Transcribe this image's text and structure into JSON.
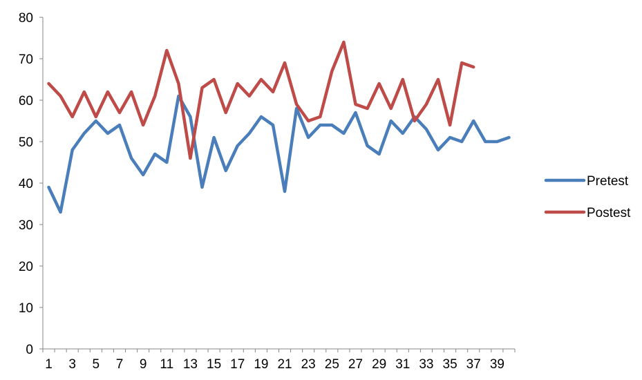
{
  "chart_data": {
    "type": "line",
    "title": "",
    "xlabel": "",
    "ylabel": "",
    "x": [
      1,
      2,
      3,
      4,
      5,
      6,
      7,
      8,
      9,
      10,
      11,
      12,
      13,
      14,
      15,
      16,
      17,
      18,
      19,
      20,
      21,
      22,
      23,
      24,
      25,
      26,
      27,
      28,
      29,
      30,
      31,
      32,
      33,
      34,
      35,
      36,
      37,
      38,
      39,
      40
    ],
    "x_tick_labels": [
      "1",
      "3",
      "5",
      "7",
      "9",
      "11",
      "13",
      "15",
      "17",
      "19",
      "21",
      "23",
      "25",
      "27",
      "29",
      "31",
      "33",
      "35",
      "37",
      "39"
    ],
    "y_tick_labels": [
      "0",
      "10",
      "20",
      "30",
      "40",
      "50",
      "60",
      "70",
      "80"
    ],
    "ylim": [
      0,
      80
    ],
    "y_ticks": [
      0,
      10,
      20,
      30,
      40,
      50,
      60,
      70,
      80
    ],
    "grid": false,
    "legend_position": "right",
    "series": [
      {
        "name": "Pretest",
        "color": "#4A7EBB",
        "values": [
          39,
          33,
          48,
          52,
          55,
          52,
          54,
          46,
          42,
          47,
          45,
          61,
          56,
          39,
          51,
          43,
          49,
          52,
          56,
          54,
          38,
          58,
          51,
          54,
          54,
          52,
          57,
          49,
          47,
          55,
          52,
          56,
          53,
          48,
          51,
          50,
          55,
          50,
          50,
          51
        ]
      },
      {
        "name": "Postest",
        "color": "#BE4B48",
        "values": [
          64,
          61,
          56,
          62,
          56,
          62,
          57,
          62,
          54,
          61,
          72,
          64,
          46,
          63,
          65,
          57,
          64,
          61,
          65,
          62,
          69,
          59,
          55,
          56,
          67,
          74,
          59,
          58,
          64,
          58,
          65,
          55,
          59,
          65,
          54,
          69,
          68,
          null,
          null,
          null
        ]
      }
    ]
  }
}
